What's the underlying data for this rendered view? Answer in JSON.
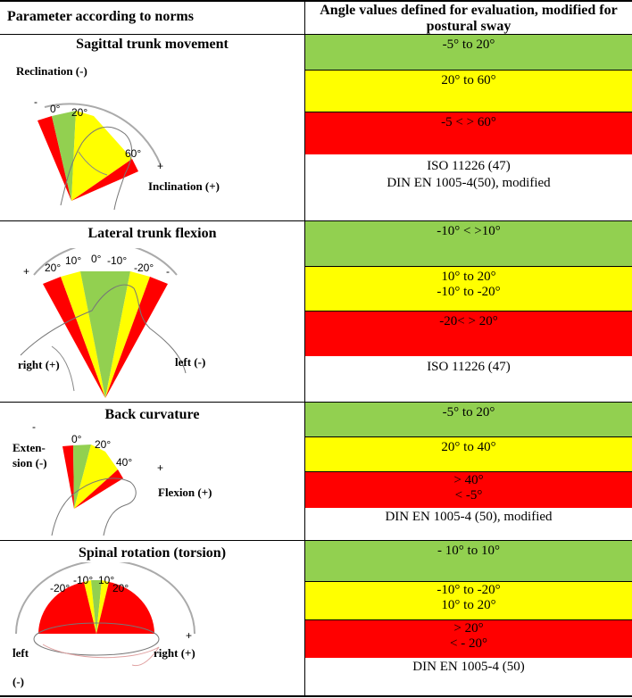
{
  "header": {
    "col1": "Parameter according to norms",
    "col2": "Angle values defined for evaluation, modified for postural sway"
  },
  "colors": {
    "green": "#92d050",
    "yellow": "#ffff00",
    "red": "#ff0000"
  },
  "rows": [
    {
      "title": "Sagittal trunk movement",
      "labels": {
        "a": "Reclination (-)",
        "b": "Inclination (+)"
      },
      "figure": {
        "minus": "-",
        "plus": "+",
        "t1": "0°",
        "t2": "20°",
        "t3": "60°"
      },
      "bands": [
        [
          "-5° to 20°"
        ],
        [
          "20° to 60°"
        ],
        [
          "-5 < > 60°"
        ]
      ],
      "note": [
        "ISO 11226 (47)",
        "DIN EN 1005-4(50), modified"
      ]
    },
    {
      "title": "Lateral trunk flexion",
      "labels": {
        "a": "right (+)",
        "b": "left (-)"
      },
      "figure": {
        "plus": "+",
        "minus": "-",
        "t1": "20°",
        "t2": "10°",
        "t3": "0°",
        "t4": "-10°",
        "t5": "-20°"
      },
      "bands": [
        [
          "-10° < >10°"
        ],
        [
          "10° to 20°",
          "-10° to -20°"
        ],
        [
          "-20< > 20°"
        ]
      ],
      "note": [
        "ISO 11226 (47)"
      ]
    },
    {
      "title": "Back curvature",
      "labels": {
        "a1": "Exten-",
        "a2": "sion (-)",
        "b": "Flexion (+)"
      },
      "figure": {
        "minus": "-",
        "plus": "+",
        "t1": "0°",
        "t2": "20°",
        "t3": "40°"
      },
      "bands": [
        [
          "-5° to 20°"
        ],
        [
          "20° to 40°"
        ],
        [
          "> 40°",
          "< -5°"
        ]
      ],
      "note": [
        "DIN EN 1005-4 (50), modified"
      ]
    },
    {
      "title": "Spinal rotation (torsion)",
      "labels": {
        "a1": "left",
        "a2": "(-)",
        "b": "right (+)"
      },
      "figure": {
        "minus": "-",
        "plus": "+",
        "t1": "-20°",
        "t2": "-10°",
        "t3": "10°",
        "t4": "20°"
      },
      "bands": [
        [
          "- 10° to 10°"
        ],
        [
          "-10° to -20°",
          "10° to 20°"
        ],
        [
          "> 20°",
          "< - 20°"
        ]
      ],
      "note": [
        "DIN EN 1005-4 (50)"
      ]
    }
  ]
}
